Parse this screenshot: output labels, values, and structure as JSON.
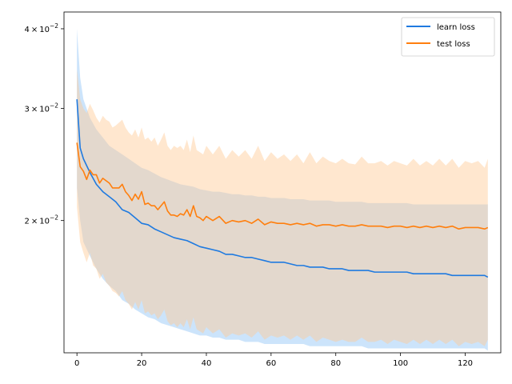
{
  "chart_data": {
    "type": "line",
    "title": "",
    "xlabel": "",
    "ylabel": "",
    "xlim": [
      -4,
      131
    ],
    "ylim": [
      0.0124,
      0.0425
    ],
    "yscale": "log",
    "grid": false,
    "legend_position": "top-right",
    "x_ticks": [
      0,
      20,
      40,
      60,
      80,
      100,
      120
    ],
    "x_tick_labels": [
      "0",
      "20",
      "40",
      "60",
      "80",
      "100",
      "120"
    ],
    "y_ticks": [
      0.02,
      0.03,
      0.04
    ],
    "y_tick_labels": [
      {
        "mantissa": "2",
        "times": "×",
        "base": "10",
        "exponent": "−2"
      },
      {
        "mantissa": "3",
        "times": "×",
        "base": "10",
        "exponent": "−2"
      },
      {
        "mantissa": "4",
        "times": "×",
        "base": "10",
        "exponent": "−2"
      }
    ],
    "series": [
      {
        "name": "learn loss",
        "color": "#1f7ae0",
        "band_color": "#8ec4f7",
        "band_opacity": 0.45,
        "x": [
          0,
          1,
          2,
          4,
          6,
          8,
          10,
          12,
          14,
          16,
          18,
          20,
          22,
          24,
          26,
          28,
          30,
          32,
          34,
          36,
          38,
          40,
          42,
          44,
          46,
          48,
          50,
          52,
          54,
          56,
          58,
          60,
          62,
          64,
          66,
          68,
          70,
          72,
          74,
          76,
          78,
          80,
          82,
          84,
          86,
          88,
          90,
          92,
          94,
          96,
          98,
          100,
          102,
          104,
          106,
          108,
          110,
          112,
          114,
          116,
          118,
          120,
          122,
          124,
          126,
          127
        ],
        "mean": [
          0.031,
          0.026,
          0.025,
          0.0238,
          0.0228,
          0.0222,
          0.0218,
          0.0214,
          0.0208,
          0.0206,
          0.0202,
          0.0198,
          0.0197,
          0.0194,
          0.0192,
          0.019,
          0.0188,
          0.0187,
          0.0186,
          0.0184,
          0.0182,
          0.0181,
          0.018,
          0.0179,
          0.0177,
          0.0177,
          0.0176,
          0.0175,
          0.0175,
          0.0174,
          0.0173,
          0.0172,
          0.0172,
          0.0172,
          0.0171,
          0.017,
          0.017,
          0.0169,
          0.0169,
          0.0169,
          0.0168,
          0.0168,
          0.0168,
          0.0167,
          0.0167,
          0.0167,
          0.0167,
          0.0166,
          0.0166,
          0.0166,
          0.0166,
          0.0166,
          0.0166,
          0.0165,
          0.0165,
          0.0165,
          0.0165,
          0.0165,
          0.0165,
          0.0164,
          0.0164,
          0.0164,
          0.0164,
          0.0164,
          0.0164,
          0.0163
        ],
        "upper": [
          0.04,
          0.0335,
          0.031,
          0.029,
          0.0278,
          0.027,
          0.0262,
          0.0258,
          0.0254,
          0.025,
          0.0246,
          0.0242,
          0.024,
          0.0237,
          0.0234,
          0.0232,
          0.023,
          0.0228,
          0.0227,
          0.0226,
          0.0224,
          0.0223,
          0.0222,
          0.0222,
          0.0221,
          0.022,
          0.022,
          0.0219,
          0.0219,
          0.0218,
          0.0218,
          0.0217,
          0.0217,
          0.0217,
          0.0216,
          0.0216,
          0.0216,
          0.0215,
          0.0215,
          0.0215,
          0.0215,
          0.0214,
          0.0214,
          0.0214,
          0.0214,
          0.0214,
          0.0213,
          0.0213,
          0.0213,
          0.0213,
          0.0213,
          0.0213,
          0.0213,
          0.0212,
          0.0212,
          0.0212,
          0.0212,
          0.0212,
          0.0212,
          0.0212,
          0.0212,
          0.0212,
          0.0212,
          0.0212,
          0.0212,
          0.0212
        ],
        "lower": [
          0.0225,
          0.02,
          0.0185,
          0.0176,
          0.0168,
          0.0162,
          0.0158,
          0.0155,
          0.015,
          0.0148,
          0.0145,
          0.0143,
          0.0141,
          0.014,
          0.0138,
          0.0137,
          0.0136,
          0.0135,
          0.0134,
          0.0133,
          0.0132,
          0.0132,
          0.0131,
          0.0131,
          0.013,
          0.013,
          0.013,
          0.0129,
          0.0129,
          0.0129,
          0.0128,
          0.0128,
          0.0128,
          0.0128,
          0.0128,
          0.0128,
          0.0128,
          0.0127,
          0.0127,
          0.0127,
          0.0127,
          0.0127,
          0.0127,
          0.0127,
          0.0127,
          0.0127,
          0.0126,
          0.0126,
          0.0126,
          0.0126,
          0.0126,
          0.0126,
          0.0126,
          0.0126,
          0.0126,
          0.0126,
          0.0126,
          0.0126,
          0.0126,
          0.0126,
          0.0126,
          0.0126,
          0.0126,
          0.0126,
          0.0126,
          0.0125
        ]
      },
      {
        "name": "test loss",
        "color": "#ff7f0e",
        "band_color": "#ffc995",
        "band_opacity": 0.45,
        "x": [
          0,
          1,
          2,
          3,
          4,
          5,
          6,
          7,
          8,
          9,
          10,
          11,
          12,
          13,
          14,
          15,
          16,
          17,
          18,
          19,
          20,
          21,
          22,
          23,
          24,
          25,
          26,
          27,
          28,
          29,
          30,
          31,
          32,
          33,
          34,
          35,
          36,
          37,
          38,
          39,
          40,
          42,
          44,
          46,
          48,
          50,
          52,
          54,
          56,
          58,
          60,
          62,
          64,
          66,
          68,
          70,
          72,
          74,
          76,
          78,
          80,
          82,
          84,
          86,
          88,
          90,
          92,
          94,
          96,
          98,
          100,
          102,
          104,
          106,
          108,
          110,
          112,
          114,
          116,
          118,
          120,
          122,
          124,
          126,
          127
        ],
        "mean": [
          0.0265,
          0.0243,
          0.0239,
          0.0232,
          0.024,
          0.0236,
          0.0236,
          0.0229,
          0.0233,
          0.0231,
          0.0229,
          0.0225,
          0.0225,
          0.0225,
          0.0228,
          0.0222,
          0.0219,
          0.0215,
          0.022,
          0.0216,
          0.0222,
          0.0212,
          0.0213,
          0.0211,
          0.0211,
          0.0208,
          0.0211,
          0.0214,
          0.0207,
          0.0204,
          0.0204,
          0.0203,
          0.0205,
          0.0204,
          0.0208,
          0.0203,
          0.0211,
          0.0203,
          0.0202,
          0.02,
          0.0203,
          0.02,
          0.0203,
          0.0198,
          0.02,
          0.0199,
          0.02,
          0.0198,
          0.0201,
          0.0197,
          0.0199,
          0.0198,
          0.0198,
          0.0197,
          0.0198,
          0.0197,
          0.0198,
          0.0196,
          0.0197,
          0.0197,
          0.0196,
          0.0197,
          0.0196,
          0.0196,
          0.0197,
          0.0196,
          0.0196,
          0.0196,
          0.0195,
          0.0196,
          0.0196,
          0.0195,
          0.0196,
          0.0195,
          0.0196,
          0.0195,
          0.0196,
          0.0195,
          0.0196,
          0.0194,
          0.0195,
          0.0195,
          0.0195,
          0.0194,
          0.0195
        ],
        "upper": [
          0.0345,
          0.031,
          0.03,
          0.0295,
          0.0305,
          0.0298,
          0.029,
          0.0285,
          0.0292,
          0.0288,
          0.0286,
          0.028,
          0.0282,
          0.0285,
          0.0288,
          0.028,
          0.0275,
          0.0272,
          0.0278,
          0.027,
          0.028,
          0.0268,
          0.027,
          0.0266,
          0.027,
          0.0262,
          0.0268,
          0.0275,
          0.0262,
          0.0258,
          0.0262,
          0.026,
          0.0262,
          0.0258,
          0.0268,
          0.0256,
          0.0272,
          0.0258,
          0.0256,
          0.0254,
          0.0262,
          0.0254,
          0.0262,
          0.025,
          0.0258,
          0.0252,
          0.0258,
          0.025,
          0.0262,
          0.0248,
          0.0256,
          0.025,
          0.0254,
          0.0248,
          0.0254,
          0.0246,
          0.0256,
          0.0246,
          0.0252,
          0.0248,
          0.0246,
          0.025,
          0.0246,
          0.0245,
          0.0252,
          0.0246,
          0.0246,
          0.0248,
          0.0244,
          0.0248,
          0.0246,
          0.0244,
          0.025,
          0.0244,
          0.0248,
          0.0244,
          0.025,
          0.0244,
          0.025,
          0.0242,
          0.0248,
          0.0246,
          0.0248,
          0.0242,
          0.025
        ],
        "lower": [
          0.021,
          0.0185,
          0.0178,
          0.0172,
          0.0178,
          0.017,
          0.0168,
          0.0162,
          0.0165,
          0.016,
          0.0158,
          0.0155,
          0.0154,
          0.0152,
          0.0155,
          0.015,
          0.0148,
          0.0145,
          0.0149,
          0.0145,
          0.015,
          0.0143,
          0.0144,
          0.0142,
          0.0143,
          0.014,
          0.0142,
          0.0145,
          0.0139,
          0.0137,
          0.0138,
          0.0136,
          0.0138,
          0.0136,
          0.014,
          0.0135,
          0.0141,
          0.0135,
          0.0134,
          0.0133,
          0.0136,
          0.0133,
          0.0135,
          0.0131,
          0.0133,
          0.0132,
          0.0133,
          0.0131,
          0.0134,
          0.013,
          0.0132,
          0.0131,
          0.0132,
          0.013,
          0.0132,
          0.013,
          0.0132,
          0.0129,
          0.0131,
          0.013,
          0.0129,
          0.013,
          0.0129,
          0.0129,
          0.0131,
          0.0129,
          0.0129,
          0.013,
          0.0128,
          0.013,
          0.0129,
          0.0128,
          0.013,
          0.0128,
          0.013,
          0.0128,
          0.013,
          0.0128,
          0.013,
          0.0127,
          0.0129,
          0.0128,
          0.0129,
          0.0127,
          0.013
        ]
      }
    ]
  }
}
